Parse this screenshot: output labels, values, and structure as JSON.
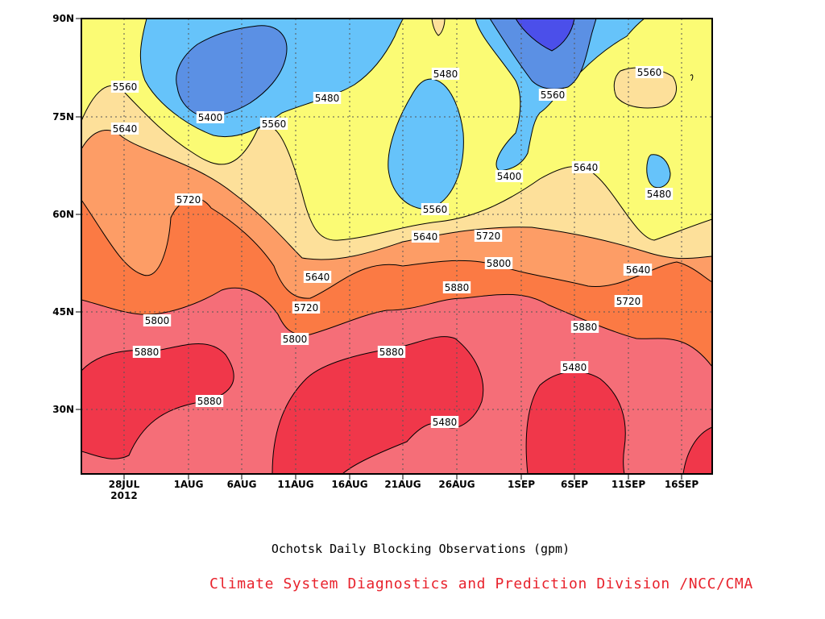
{
  "chart_data": {
    "type": "heatmap",
    "title": "Ochotsk Daily Blocking Observations (gpm)",
    "credit": "Climate System Diagnostics and Prediction Division /NCC/CMA",
    "x_ticks": [
      "28JUL",
      "1AUG",
      "6AUG",
      "11AUG",
      "16AUG",
      "21AUG",
      "26AUG",
      "1SEP",
      "6SEP",
      "11SEP",
      "16SEP"
    ],
    "x_year_label": "2012",
    "y_ticks": [
      "30N",
      "45N",
      "60N",
      "75N",
      "90N"
    ],
    "grid": true,
    "contour_levels": [
      5400,
      5480,
      5560,
      5640,
      5720,
      5800,
      5880
    ],
    "contour_labels": [
      "5560",
      "5640",
      "5720",
      "5800",
      "5880",
      "5880",
      "5400",
      "5480",
      "5560",
      "5640",
      "5720",
      "5800",
      "5880",
      "5480",
      "5480",
      "5560",
      "5640",
      "5720",
      "5800",
      "5880",
      "5480",
      "5400",
      "5560",
      "5640",
      "5720",
      "5800",
      "5880",
      "5560",
      "5480",
      "5640",
      "5720"
    ],
    "colors": {
      "lt5400": "#4b4fea",
      "5400-5480": "#5b90e4",
      "5480-5560": "#66c3fa",
      "5560-5640": "#fbfb74",
      "5640-5720": "#fde09a",
      "5720-5800": "#fd9d66",
      "5800-5880": "#fb7a44",
      "5880-plus": "#f56e78",
      "max": "#f0374a"
    }
  }
}
